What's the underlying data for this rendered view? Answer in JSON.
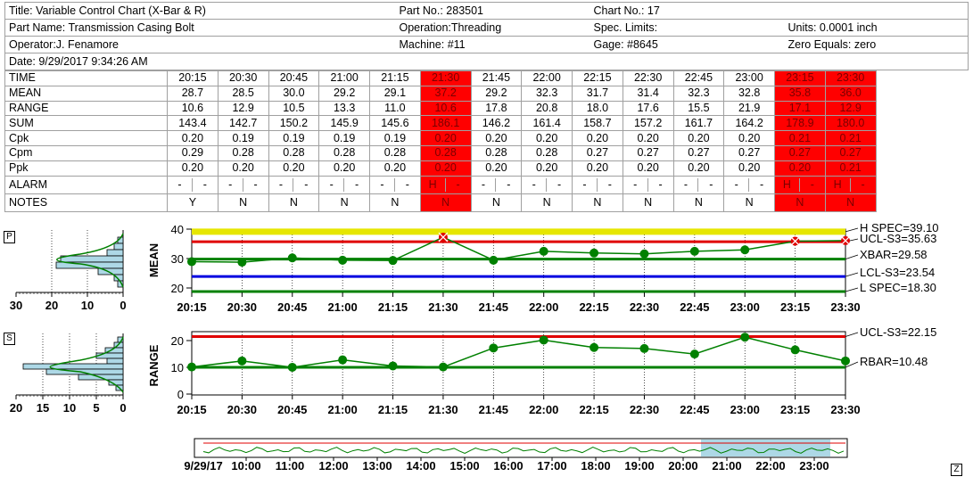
{
  "header": {
    "title": "Title: Variable Control Chart (X-Bar & R)",
    "part_no": "Part No.: 283501",
    "chart_no": "Chart No.: 17",
    "part_name": "Part Name: Transmission Casing Bolt",
    "operation": "Operation:Threading",
    "spec_limits": "Spec. Limits:",
    "units": "Units: 0.0001 inch",
    "operator": "Operator:J. Fenamore",
    "machine": "Machine: #11",
    "gage": "Gage: #8645",
    "zero_equals": "Zero Equals: zero",
    "date": "Date: 9/29/2017 9:34:26 AM"
  },
  "table": {
    "row_labels": [
      "TIME",
      "MEAN",
      "RANGE",
      "SUM",
      "Cpk",
      "Cpm",
      "Ppk",
      "ALARM",
      "NOTES"
    ],
    "times": [
      "20:15",
      "20:30",
      "20:45",
      "21:00",
      "21:15",
      "21:30",
      "21:45",
      "22:00",
      "22:15",
      "22:30",
      "22:45",
      "23:00",
      "23:15",
      "23:30"
    ],
    "mean": [
      "28.7",
      "28.5",
      "30.0",
      "29.2",
      "29.1",
      "37.2",
      "29.2",
      "32.3",
      "31.7",
      "31.4",
      "32.3",
      "32.8",
      "35.8",
      "36.0"
    ],
    "range": [
      "10.6",
      "12.9",
      "10.5",
      "13.3",
      "11.0",
      "10.6",
      "17.8",
      "20.8",
      "18.0",
      "17.6",
      "15.5",
      "21.9",
      "17.1",
      "12.9"
    ],
    "sum": [
      "143.4",
      "142.7",
      "150.2",
      "145.9",
      "145.6",
      "186.1",
      "146.2",
      "161.4",
      "158.7",
      "157.2",
      "161.7",
      "164.2",
      "178.9",
      "180.0"
    ],
    "cpk": [
      "0.20",
      "0.19",
      "0.19",
      "0.19",
      "0.19",
      "0.20",
      "0.20",
      "0.20",
      "0.20",
      "0.20",
      "0.20",
      "0.20",
      "0.21",
      "0.21"
    ],
    "cpm": [
      "0.29",
      "0.28",
      "0.28",
      "0.28",
      "0.28",
      "0.28",
      "0.28",
      "0.28",
      "0.27",
      "0.27",
      "0.27",
      "0.27",
      "0.27",
      "0.27"
    ],
    "ppk": [
      "0.20",
      "0.20",
      "0.20",
      "0.20",
      "0.20",
      "0.20",
      "0.20",
      "0.20",
      "0.20",
      "0.20",
      "0.20",
      "0.20",
      "0.20",
      "0.21"
    ],
    "alarm": [
      [
        "-",
        "-"
      ],
      [
        "-",
        "-"
      ],
      [
        "-",
        "-"
      ],
      [
        "-",
        "-"
      ],
      [
        "-",
        "-"
      ],
      [
        "H",
        "-"
      ],
      [
        "-",
        "-"
      ],
      [
        "-",
        "-"
      ],
      [
        "-",
        "-"
      ],
      [
        "-",
        "-"
      ],
      [
        "-",
        "-"
      ],
      [
        "-",
        "-"
      ],
      [
        "H",
        "-"
      ],
      [
        "H",
        "-"
      ]
    ],
    "notes": [
      "Y",
      "N",
      "N",
      "N",
      "N",
      "N",
      "N",
      "N",
      "N",
      "N",
      "N",
      "N",
      "N",
      "N"
    ],
    "alarm_columns": [
      5,
      12,
      13
    ],
    "alarm_color": "#ff0000"
  },
  "chart_data": [
    {
      "type": "line",
      "ylabel": "MEAN",
      "x": [
        "20:15",
        "20:30",
        "20:45",
        "21:00",
        "21:15",
        "21:30",
        "21:45",
        "22:00",
        "22:15",
        "22:30",
        "22:45",
        "23:00",
        "23:15",
        "23:30"
      ],
      "yticks": [
        "40",
        "30",
        "20"
      ],
      "ylim": [
        18,
        40
      ],
      "series": [
        {
          "values": [
            28.7,
            28.5,
            30.0,
            29.2,
            29.1,
            37.2,
            29.2,
            32.3,
            31.7,
            31.4,
            32.3,
            32.8,
            35.8,
            36.0
          ]
        }
      ],
      "out_of_control": [
        5,
        12,
        13
      ],
      "limits": [
        {
          "label": "H SPEC=39.10",
          "value": 39.1,
          "color": "#e6e600"
        },
        {
          "label": "UCL-S3=35.63",
          "value": 35.63,
          "color": "#e00000"
        },
        {
          "label": "XBAR=29.58",
          "value": 29.58,
          "color": "#008000"
        },
        {
          "label": "LCL-S3=23.54",
          "value": 23.54,
          "color": "#0000e0"
        },
        {
          "label": "L SPEC=18.30",
          "value": 18.3,
          "color": "#008000"
        }
      ],
      "histogram": {
        "xticks": [
          "30",
          "20",
          "10",
          "0"
        ],
        "corner_label": "P"
      }
    },
    {
      "type": "line",
      "ylabel": "RANGE",
      "x": [
        "20:15",
        "20:30",
        "20:45",
        "21:00",
        "21:15",
        "21:30",
        "21:45",
        "22:00",
        "22:15",
        "22:30",
        "22:45",
        "23:00",
        "23:15",
        "23:30"
      ],
      "yticks": [
        "20",
        "10",
        "0"
      ],
      "ylim": [
        0,
        24
      ],
      "series": [
        {
          "values": [
            10.6,
            12.9,
            10.5,
            13.3,
            11.0,
            10.6,
            17.8,
            20.8,
            18.0,
            17.6,
            15.5,
            21.9,
            17.1,
            12.9
          ]
        }
      ],
      "limits": [
        {
          "label": "UCL-S3=22.15",
          "value": 22.15,
          "color": "#e00000"
        },
        {
          "label": "RBAR=10.48",
          "value": 10.48,
          "color": "#008000"
        }
      ],
      "histogram": {
        "xticks": [
          "20",
          "15",
          "10",
          "5",
          "0"
        ],
        "corner_label": "S"
      }
    }
  ],
  "overview": {
    "date_label": "9/29/17",
    "ticks": [
      "10:00",
      "11:00",
      "12:00",
      "13:00",
      "14:00",
      "15:00",
      "16:00",
      "17:00",
      "18:00",
      "19:00",
      "20:00",
      "21:00",
      "22:00",
      "23:00"
    ],
    "corner_label": "Z",
    "highlight_color": "#add8e6"
  },
  "colors": {
    "series_line": "#008000",
    "marker": "#008000",
    "alarm_marker": "#e00000",
    "hist_fill": "#add8e6"
  }
}
